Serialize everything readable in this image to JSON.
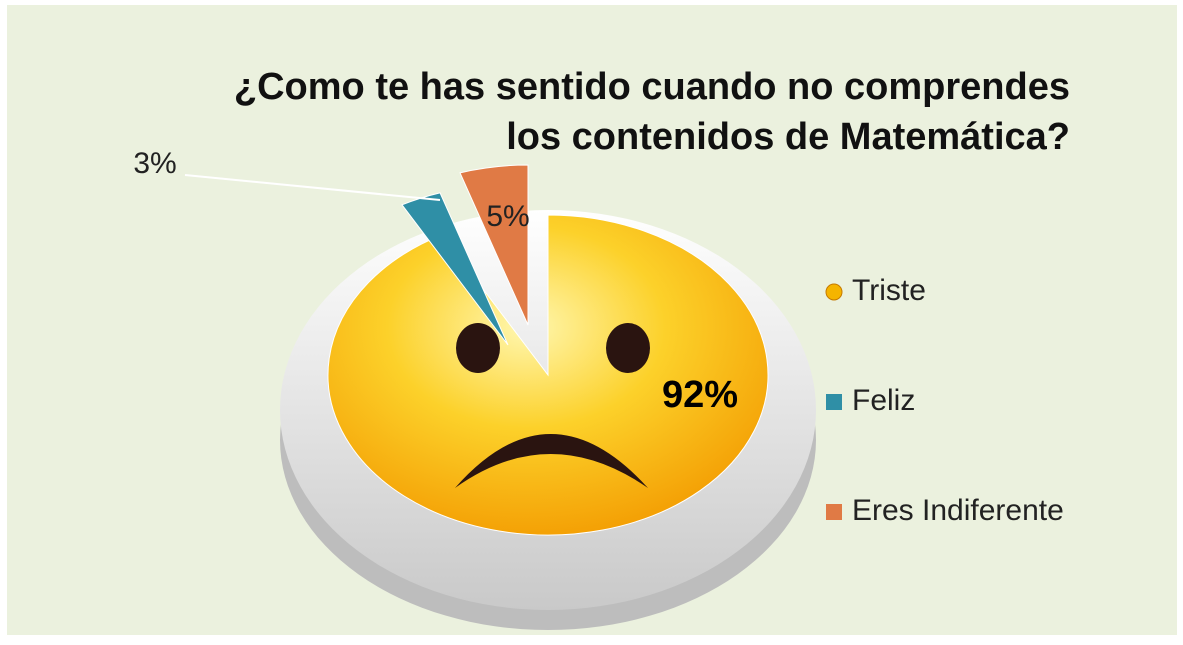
{
  "chart_data": {
    "type": "pie",
    "title": "¿Como te has sentido cuando no comprendes los contenidos de Matemática?",
    "categories": [
      "Triste",
      "Feliz",
      "Eres Indiferente"
    ],
    "values": [
      92,
      3,
      5
    ],
    "value_labels": [
      "92%",
      "3%",
      "5%"
    ],
    "colors": [
      "#f5b400",
      "#2f8fa6",
      "#e07a45"
    ],
    "legend": "right"
  }
}
